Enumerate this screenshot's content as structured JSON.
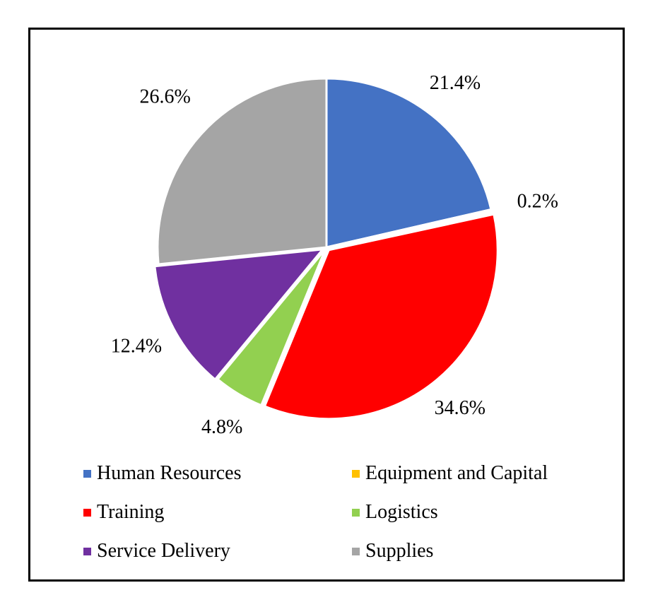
{
  "chart_data": {
    "type": "pie",
    "title": "",
    "categories": [
      "Human Resources",
      "Equipment and Capital",
      "Training",
      "Logistics",
      "Service Delivery",
      "Supplies"
    ],
    "values": [
      21.4,
      0.2,
      34.6,
      4.8,
      12.4,
      26.6
    ],
    "data_labels": [
      "21.4%",
      "0.2%",
      "34.6%",
      "4.8%",
      "12.4%",
      "26.6%"
    ],
    "colors": [
      "#4472C4",
      "#FFC000",
      "#FF0000",
      "#92D050",
      "#7030A0",
      "#A5A5A5"
    ],
    "start_angle": "12 o'clock",
    "direction": "clockwise",
    "legend_position": "bottom, two columns"
  }
}
